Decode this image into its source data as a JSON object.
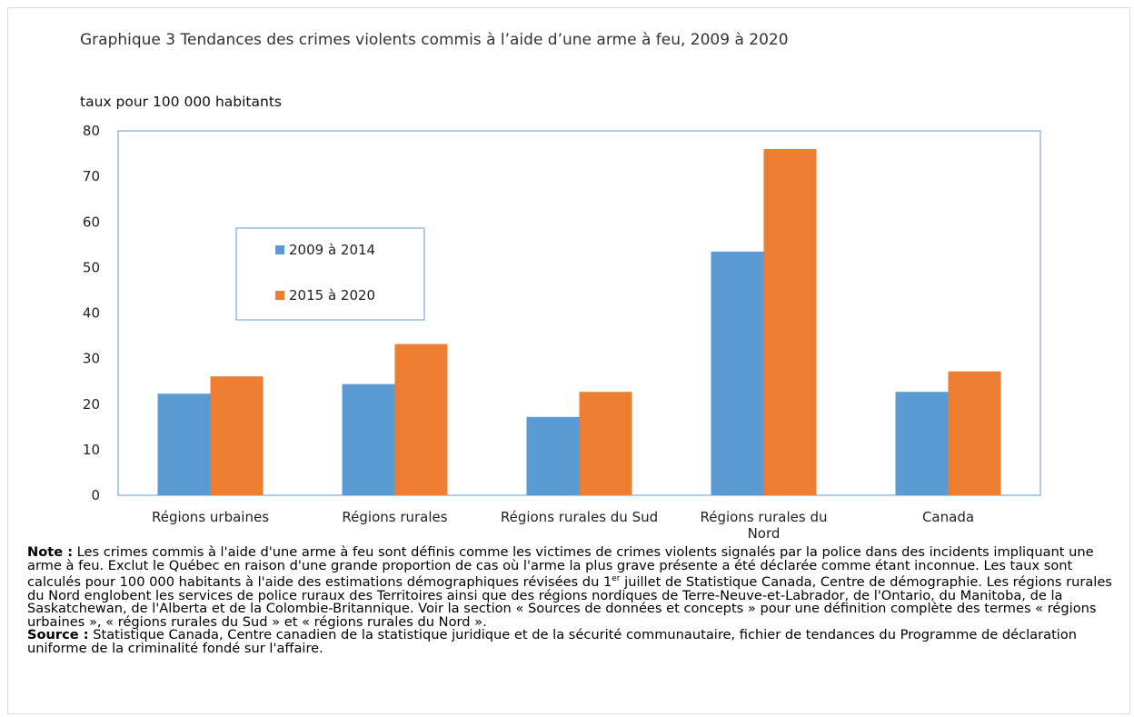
{
  "chart_data": {
    "type": "bar",
    "title": "Graphique 3 Tendances des crimes violents commis à l’aide d’une arme à feu, 2009 à 2020",
    "ylabel": "taux pour 100 000 habitants",
    "xlabel": "",
    "categories": [
      "Régions urbaines",
      "Régions rurales",
      "Régions rurales du Sud",
      "Régions rurales du Nord",
      "Canada"
    ],
    "category_lines": [
      [
        "Régions urbaines"
      ],
      [
        "Régions rurales"
      ],
      [
        "Régions rurales du Sud"
      ],
      [
        "Régions rurales du",
        "Nord"
      ],
      [
        "Canada"
      ]
    ],
    "series": [
      {
        "name": "2009 à 2014",
        "color": "#5B9BD5",
        "values": [
          22.3,
          24.4,
          17.2,
          53.5,
          22.7
        ]
      },
      {
        "name": "2015 à 2020",
        "color": "#ED7D31",
        "values": [
          26.1,
          33.2,
          22.7,
          76.0,
          27.2
        ]
      }
    ],
    "ylim": [
      0,
      80
    ],
    "yticks": [
      "0",
      "10",
      "20",
      "30",
      "40",
      "50",
      "60",
      "70",
      "80"
    ],
    "grid": false,
    "legend_position": "upper-left inside plot"
  },
  "notes": {
    "note_label": "Note :",
    "note_text": " Les crimes commis à l'aide d'une arme à feu sont définis comme les victimes de crimes violents signalés par la police dans des incidents impliquant une arme à feu. Exclut le Québec en raison d'une grande proportion de cas où l'arme la plus grave présente a été déclarée comme étant inconnue. Les taux sont calculés pour 100 000 habitants à l'aide des estimations démographiques révisées du ",
    "note_ordinal": "1",
    "note_ordinal_sup": "er",
    "note_text_2": " juillet de Statistique Canada, Centre de démographie. Les régions rurales du Nord englobent les services de police ruraux des Territoires ainsi que des régions nordiques de Terre-Neuve-et-Labrador, de l'Ontario, du Manitoba, de la Saskatchewan, de l'Alberta et de la Colombie-Britannique. Voir la section « Sources de données et concepts » pour une définition complète des termes « régions urbaines », « régions rurales du Sud » et « régions rurales du Nord ».",
    "source_label": "Source :",
    "source_text": " Statistique Canada, Centre canadien de la statistique juridique et de la sécurité communautaire, fichier de tendances du Programme de déclaration uniforme de la criminalité fondé sur l'affaire."
  }
}
